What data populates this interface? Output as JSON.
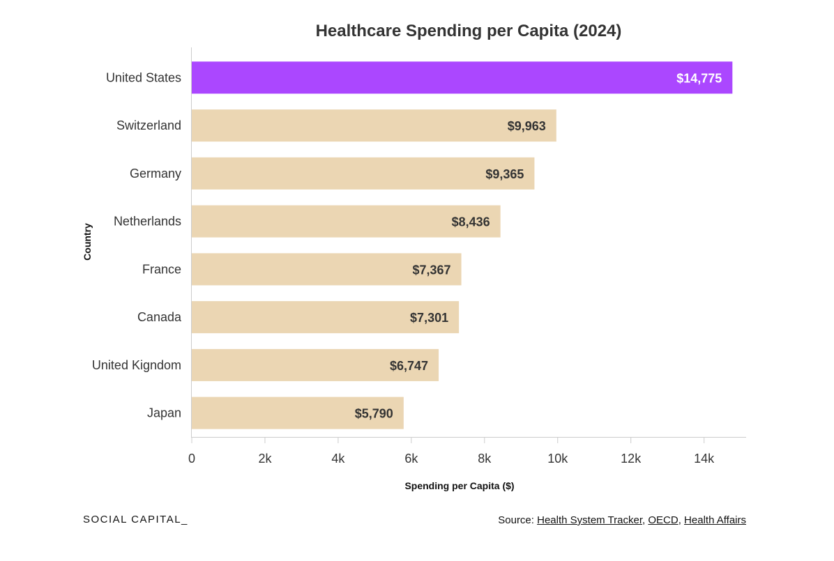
{
  "chart_data": {
    "type": "bar",
    "orientation": "horizontal",
    "title": "Healthcare Spending per Capita (2024)",
    "xlabel": "Spending per Capita ($)",
    "ylabel": "Country",
    "categories": [
      "United States",
      "Switzerland",
      "Germany",
      "Netherlands",
      "France",
      "Canada",
      "United Kigndom",
      "Japan"
    ],
    "values": [
      14775,
      9963,
      9365,
      8436,
      7367,
      7301,
      6747,
      5790
    ],
    "data_labels": [
      "$14,775",
      "$9,963",
      "$9,365",
      "$8,436",
      "$7,367",
      "$7,301",
      "$6,747",
      "$5,790"
    ],
    "xlim": [
      0,
      15150
    ],
    "xticks": [
      0,
      2000,
      4000,
      6000,
      8000,
      10000,
      12000,
      14000
    ],
    "xtick_labels": [
      "0",
      "2k",
      "4k",
      "6k",
      "8k",
      "10k",
      "12k",
      "14k"
    ],
    "highlight_index": 0,
    "colors": {
      "highlight": "#ab47ff",
      "bar": "#ebd6b3",
      "highlight_label": "#ffffff",
      "bar_label": "#333333",
      "axis": "#cccccc"
    },
    "grid": false
  },
  "footer": {
    "brand": "SOCIAL CAPITAL_",
    "source_prefix": "Source: ",
    "sources": [
      "Health System Tracker",
      "OECD",
      "Health Affairs"
    ],
    "separator": ", "
  }
}
